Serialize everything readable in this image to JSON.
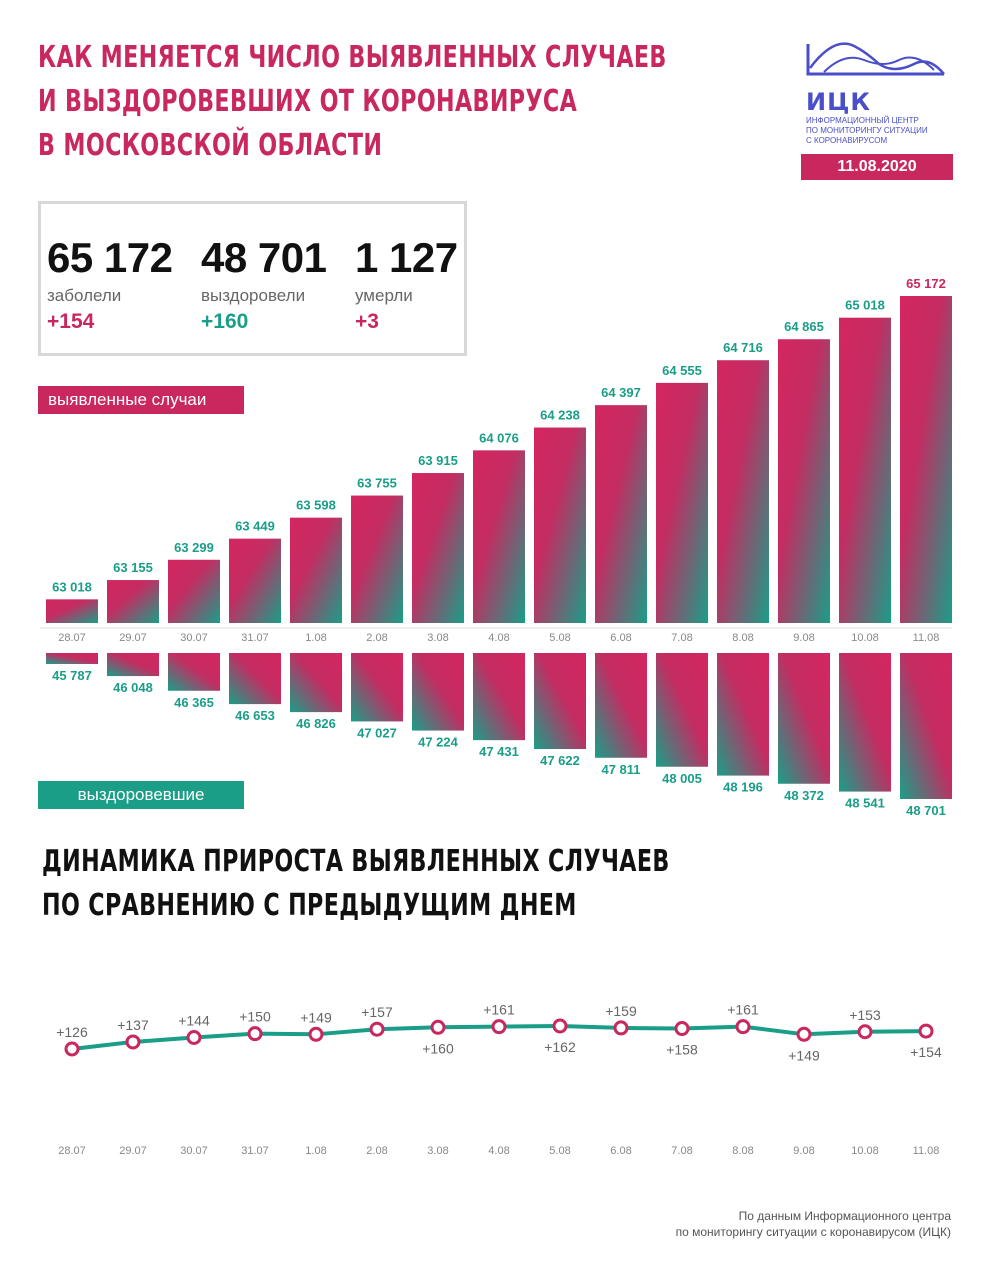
{
  "header": {
    "title_lines": [
      "КАК МЕНЯЕТСЯ ЧИСЛО ВЫЯВЛЕННЫХ СЛУЧАЕВ",
      "И ВЫЗДОРОВЕВШИХ ОТ КОРОНАВИРУСА",
      "В МОСКОВСКОЙ ОБЛАСТИ"
    ],
    "logo_abbr": "ИЦК",
    "logo_sub_lines": [
      "ИНФОРМАЦИОННЫЙ ЦЕНТР",
      "ПО МОНИТОРИНГУ СИТУАЦИИ",
      "С КОРОНАВИРУСОМ"
    ],
    "date": "11.08.2020"
  },
  "stats": [
    {
      "value": "65 172",
      "label": "заболели",
      "delta": "+154"
    },
    {
      "value": "48 701",
      "label": "выздоровели",
      "delta": "+160"
    },
    {
      "value": "1 127",
      "label": "умерли",
      "delta": "+3"
    }
  ],
  "tags": {
    "cases": "выявленные случаи",
    "recovered": "выздоровевшие"
  },
  "subtitle_lines": [
    "ДИНАМИКА ПРИРОСТА ВЫЯВЛЕННЫХ СЛУЧАЕВ",
    "ПО СРАВНЕНИЮ С ПРЕДЫДУЩИМ ДНЕМ"
  ],
  "colors": {
    "accent": "#c8285e",
    "teal": "#1a9e88",
    "logo": "#4a4ec9"
  },
  "chart_data": [
    {
      "type": "bar",
      "categories": [
        "28.07",
        "29.07",
        "30.07",
        "31.07",
        "1.08",
        "2.08",
        "3.08",
        "4.08",
        "5.08",
        "6.08",
        "7.08",
        "8.08",
        "9.08",
        "10.08",
        "11.08"
      ],
      "series": [
        {
          "name": "выявленные случаи",
          "values": [
            63018,
            63155,
            63299,
            63449,
            63598,
            63755,
            63915,
            64076,
            64238,
            64397,
            64555,
            64716,
            64865,
            65018,
            65172
          ]
        }
      ],
      "labels": [
        "63 018",
        "63 155",
        "63 299",
        "63 449",
        "63 598",
        "63 755",
        "63 915",
        "64 076",
        "64 238",
        "64 397",
        "64 555",
        "64 716",
        "64 865",
        "65 018",
        "65 172"
      ]
    },
    {
      "type": "bar",
      "categories": [
        "28.07",
        "29.07",
        "30.07",
        "31.07",
        "1.08",
        "2.08",
        "3.08",
        "4.08",
        "5.08",
        "6.08",
        "7.08",
        "8.08",
        "9.08",
        "10.08",
        "11.08"
      ],
      "series": [
        {
          "name": "выздоровевшие",
          "values": [
            45787,
            46048,
            46365,
            46653,
            46826,
            47027,
            47224,
            47431,
            47622,
            47811,
            48005,
            48196,
            48372,
            48541,
            48701
          ]
        }
      ],
      "labels": [
        "45 787",
        "46 048",
        "46 365",
        "46 653",
        "46 826",
        "47 027",
        "47 224",
        "47 431",
        "47 622",
        "47 811",
        "48 005",
        "48 196",
        "48 372",
        "48 541",
        "48 701"
      ]
    },
    {
      "type": "line",
      "x": [
        "28.07",
        "29.07",
        "30.07",
        "31.07",
        "1.08",
        "2.08",
        "3.08",
        "4.08",
        "5.08",
        "6.08",
        "7.08",
        "8.08",
        "9.08",
        "10.08",
        "11.08"
      ],
      "values": [
        126,
        137,
        144,
        150,
        149,
        157,
        160,
        161,
        162,
        159,
        158,
        161,
        149,
        153,
        154
      ],
      "labels": [
        "+126",
        "+137",
        "+144",
        "+150",
        "+149",
        "+157",
        "+160",
        "+161",
        "+162",
        "+159",
        "+158",
        "+161",
        "+149",
        "+153",
        "+154"
      ]
    }
  ],
  "footer_lines": [
    "По данным Информационного центра",
    "по мониторингу ситуации с коронавирусом (ИЦК)"
  ]
}
